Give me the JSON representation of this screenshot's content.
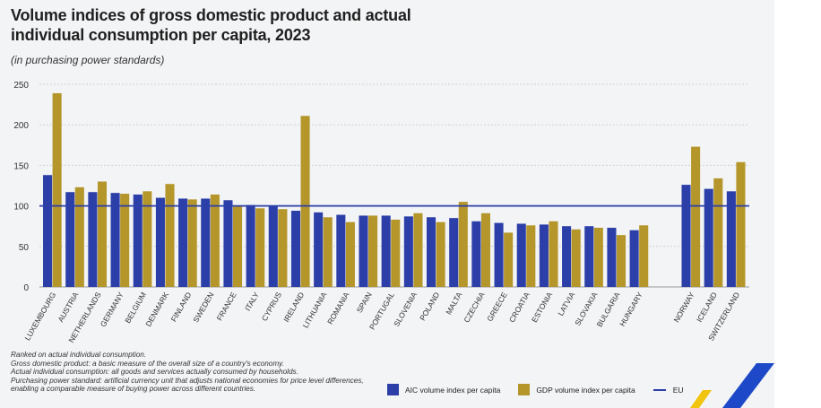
{
  "title": "Volume indices of gross domestic product and actual individual consumption per capita, 2023",
  "subtitle": "(in purchasing power standards)",
  "notes": [
    "Ranked on actual individual consumption.",
    "Gross domestic product: a basic measure of the overall size of a country's economy.",
    "Actual individual consumption: all goods and services actually consumed by households.",
    "Purchasing power standard: artificial currency unit that adjusts national economies for price level differences,",
    "enabling a comparable measure of buying power across different countries."
  ],
  "legend": {
    "aic": "AIC volume index per capita",
    "gdp": "GDP volume index per capita",
    "eu": "EU"
  },
  "colors": {
    "aic": "#2c3fa8",
    "gdp": "#b5962b",
    "eu": "#2c3fa8",
    "panel": "#f3f4f6",
    "logo_blue": "#1d49c8",
    "logo_yellow": "#f1c40f"
  },
  "chart_data": {
    "type": "bar",
    "title": "Volume indices of gross domestic product and actual individual consumption per capita, 2023",
    "ylim": [
      0,
      250
    ],
    "yticks": [
      0,
      50,
      100,
      150,
      200,
      250
    ],
    "reference_line": {
      "name": "EU",
      "value": 100
    },
    "categories": [
      "LUXEMBOURG",
      "AUSTRIA",
      "NETHERLANDS",
      "GERMANY",
      "BELGIUM",
      "DENMARK",
      "FINLAND",
      "SWEDEN",
      "FRANCE",
      "ITALY",
      "CYPRUS",
      "IRELAND",
      "LITHUANIA",
      "ROMANIA",
      "SPAIN",
      "PORTUGAL",
      "SLOVENIA",
      "POLAND",
      "MALTA",
      "CZECHIA",
      "GREECE",
      "CROATIA",
      "ESTONIA",
      "LATVIA",
      "SLOVAKIA",
      "BULGARIA",
      "HUNGARY",
      "NORWAY",
      "ICELAND",
      "SWITZERLAND"
    ],
    "gap_before": [
      "NORWAY"
    ],
    "series": [
      {
        "name": "AIC volume index per capita",
        "values": [
          138,
          117,
          117,
          116,
          114,
          110,
          109,
          109,
          107,
          101,
          100,
          94,
          92,
          89,
          88,
          88,
          87,
          86,
          85,
          81,
          79,
          78,
          77,
          75,
          75,
          73,
          70,
          126,
          121,
          118
        ]
      },
      {
        "name": "GDP volume index per capita",
        "values": [
          239,
          123,
          130,
          115,
          118,
          127,
          108,
          114,
          100,
          97,
          96,
          211,
          86,
          80,
          88,
          83,
          91,
          80,
          105,
          91,
          67,
          76,
          81,
          71,
          73,
          64,
          76,
          173,
          134,
          154
        ]
      }
    ]
  }
}
